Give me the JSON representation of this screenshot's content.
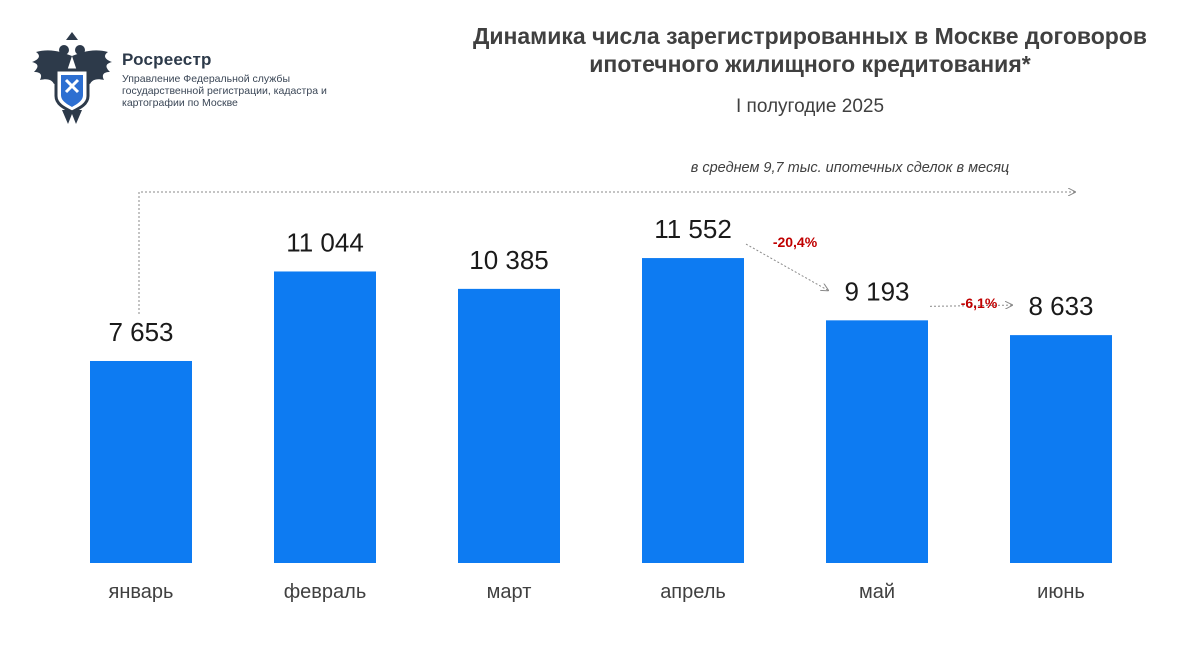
{
  "org": {
    "name": "Росреестр",
    "description": "Управление Федеральной службы государственной регистрации, кадастра и картографии по Москве"
  },
  "colors": {
    "bar": "#0d7bf2",
    "change": "#c00000",
    "text": "#404040"
  },
  "chart_data": {
    "type": "bar",
    "title": "Динамика числа зарегистрированных в Москве договоров ипотечного жилищного кредитования*",
    "subtitle": "I полугодие 2025",
    "categories": [
      "январь",
      "февраль",
      "март",
      "апрель",
      "май",
      "июнь"
    ],
    "values": [
      7653,
      11044,
      10385,
      11552,
      9193,
      8633
    ],
    "value_labels": [
      "7 653",
      "11 044",
      "10 385",
      "11 552",
      "9 193",
      "8 633"
    ],
    "ylim": [
      0,
      12350
    ],
    "grid": false,
    "annotations": [
      {
        "text": "в среднем 9,7 тыс. ипотечных сделок в месяц",
        "type": "average-note"
      },
      {
        "text": "-20,4%",
        "from": "апрель",
        "to": "май",
        "type": "change"
      },
      {
        "text": "-6,1%",
        "from": "май",
        "to": "июнь",
        "type": "change"
      }
    ]
  }
}
